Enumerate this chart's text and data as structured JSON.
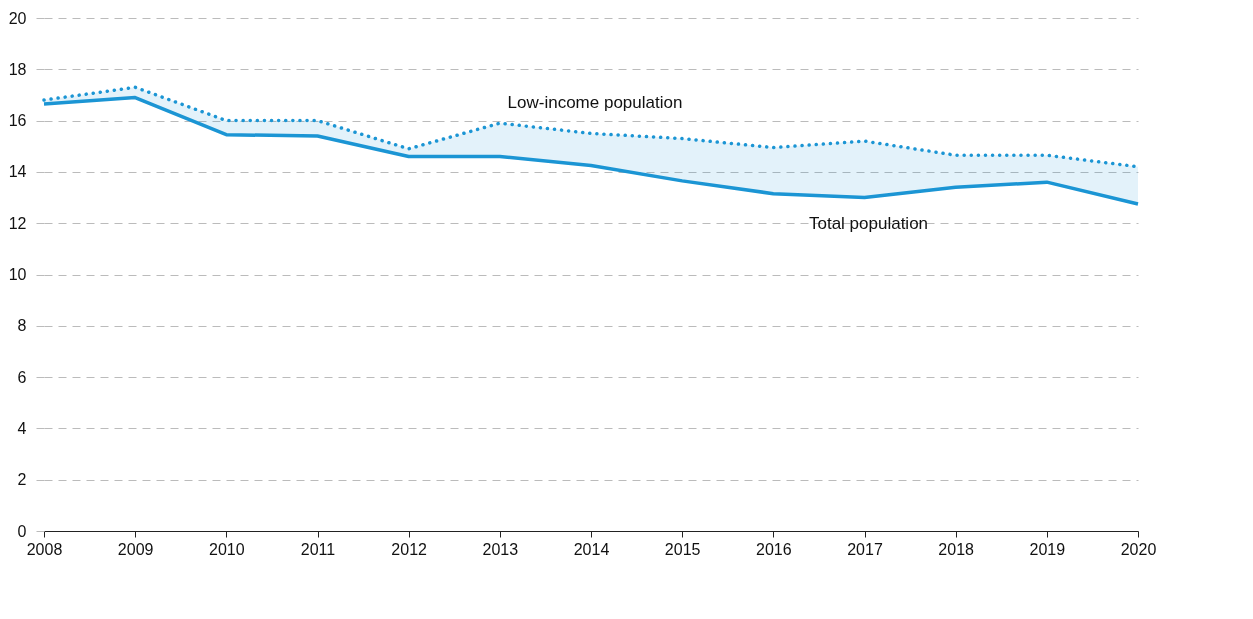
{
  "chart_data": {
    "type": "line",
    "x": [
      2008,
      2009,
      2010,
      2011,
      2012,
      2013,
      2014,
      2015,
      2016,
      2017,
      2018,
      2019,
      2020
    ],
    "xlim": [
      2008,
      2020
    ],
    "xticks": [
      2008,
      2009,
      2010,
      2011,
      2012,
      2013,
      2014,
      2015,
      2016,
      2017,
      2018,
      2019,
      2020
    ],
    "ylim": [
      0,
      20
    ],
    "yticks": [
      0,
      2,
      4,
      6,
      8,
      10,
      12,
      14,
      16,
      18,
      20
    ],
    "grid": "y",
    "marker": "none",
    "series": [
      {
        "name": "Low-income population",
        "color": "#1b95d4",
        "line_style": "dotted",
        "values": [
          16.8,
          17.3,
          16.0,
          16.0,
          14.9,
          15.9,
          15.5,
          15.3,
          14.95,
          15.2,
          14.65,
          14.65,
          14.2
        ],
        "lower": [
          16.65,
          16.9,
          15.45,
          15.4,
          14.6,
          14.6,
          14.25,
          13.65,
          13.15,
          13.0,
          13.4,
          13.6,
          12.75
        ],
        "upper": [
          16.8,
          17.3,
          16.0,
          16.0,
          14.9,
          15.9,
          15.5,
          15.3,
          14.95,
          15.2,
          14.65,
          14.65,
          14.2
        ]
      },
      {
        "name": "Total population",
        "color": "#1b95d4",
        "line_style": "solid",
        "values": [
          16.65,
          16.9,
          15.45,
          15.4,
          14.6,
          14.6,
          14.25,
          13.65,
          13.15,
          13.0,
          13.4,
          13.6,
          12.75
        ]
      }
    ]
  }
}
